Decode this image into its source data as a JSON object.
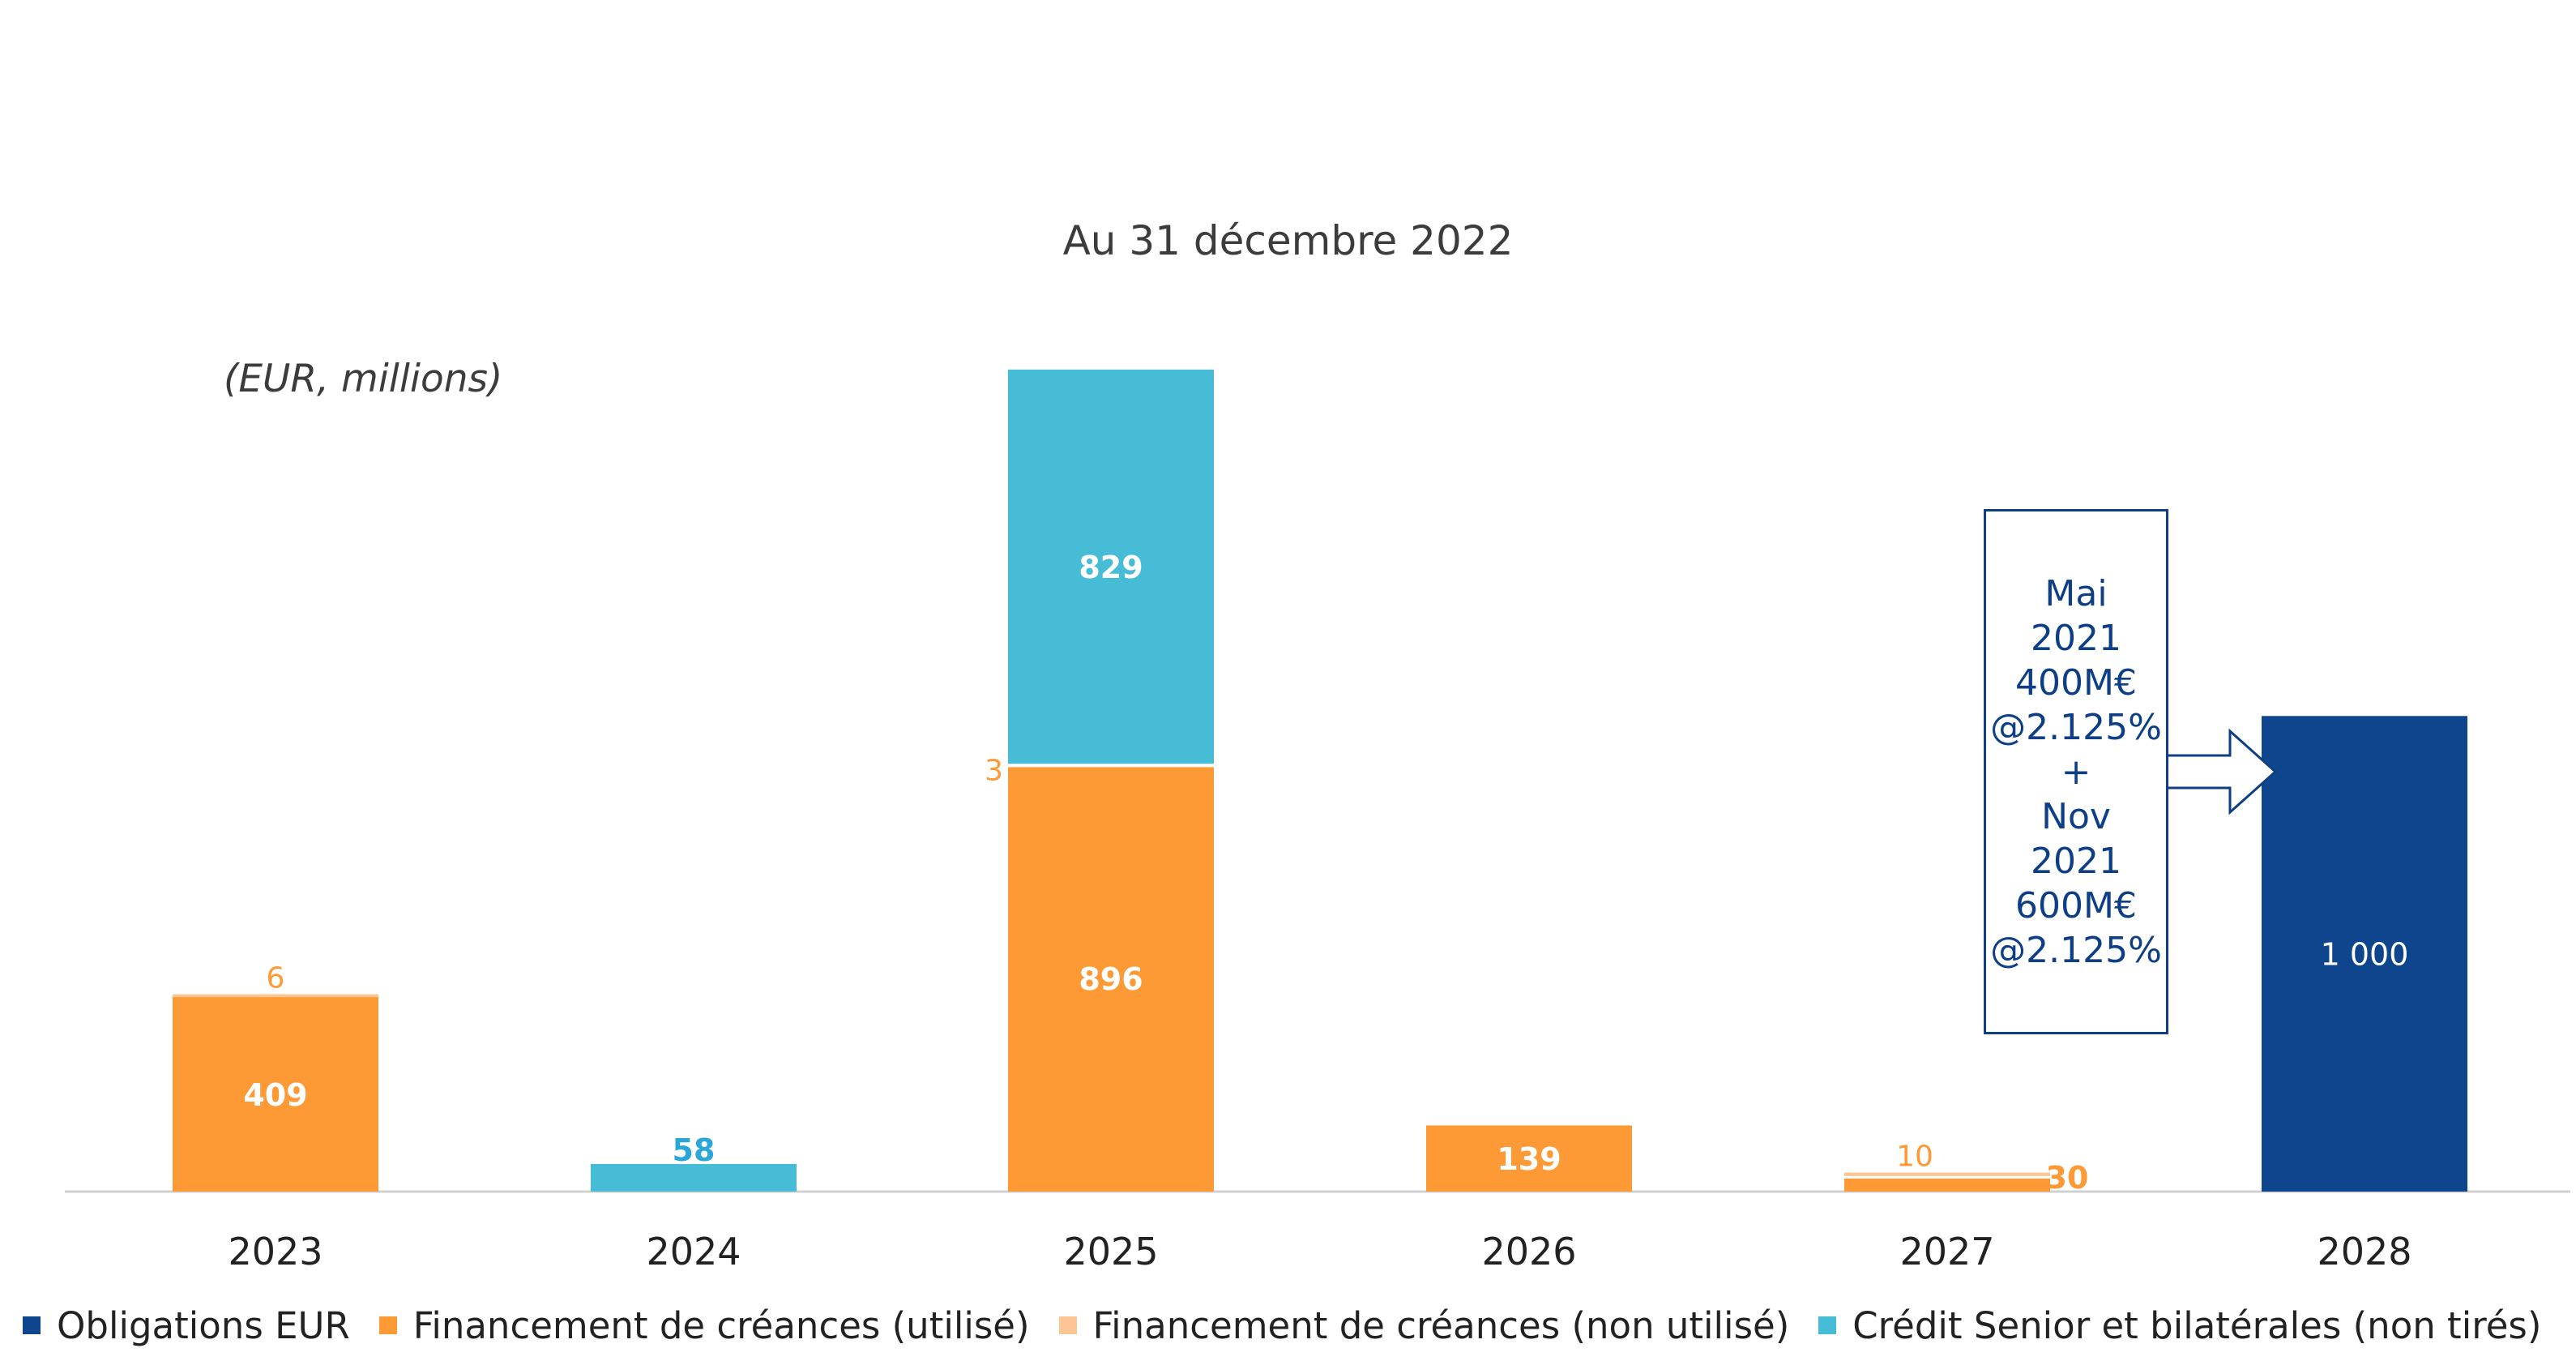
{
  "chart_data": {
    "type": "bar",
    "stacked": true,
    "title": "Au 31 décembre 2022",
    "unit_label": "(EUR, millions)",
    "categories": [
      "2023",
      "2024",
      "2025",
      "2026",
      "2027",
      "2028"
    ],
    "series": [
      {
        "name": "Obligations EUR",
        "color": "#0e458c",
        "values": [
          0,
          0,
          0,
          0,
          0,
          1000
        ],
        "labels": [
          "",
          "",
          "",
          "",
          "",
          "1 000"
        ]
      },
      {
        "name": "Financement de créances (utilisé)",
        "color": "#fe9a36",
        "values": [
          409,
          0,
          896,
          139,
          30,
          0
        ],
        "labels": [
          "409",
          "",
          "896",
          "139",
          "30",
          ""
        ]
      },
      {
        "name": "Financement de créances (non utilisé)",
        "color": "#fdc593",
        "values": [
          6,
          0,
          3,
          0,
          10,
          0
        ],
        "labels": [
          "6",
          "",
          "3",
          "",
          "10",
          ""
        ]
      },
      {
        "name": "Crédit Senior et bilatérales (non tirés)",
        "color": "#47bcd6",
        "values": [
          0,
          58,
          829,
          0,
          0,
          0
        ],
        "labels": [
          "",
          "58",
          "829",
          "",
          "",
          ""
        ]
      }
    ],
    "callout": {
      "lines": [
        "Mai",
        "2021",
        "400M€",
        "@2.125%",
        "+",
        "Nov",
        "2021",
        "600M€",
        "@2.125%"
      ],
      "color": "#0e3f86"
    },
    "grid": false,
    "legend_position": "bottom"
  }
}
